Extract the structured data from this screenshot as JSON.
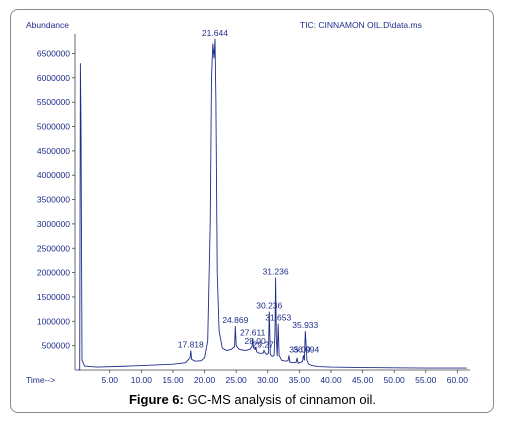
{
  "caption": {
    "prefix": "Figure 6:",
    "text": " GC-MS analysis of cinnamon oil."
  },
  "chart_data": {
    "type": "line",
    "title": "TIC: CINNAMON OIL.D\\data.ms",
    "ylabel": "Abundance",
    "xlabel": "Time-->",
    "xlim": [
      -0.5,
      62.0
    ],
    "ylim": [
      0,
      6900000
    ],
    "x_ticks": [
      5.0,
      10.0,
      15.0,
      20.0,
      25.0,
      30.0,
      35.0,
      40.0,
      45.0,
      50.0,
      55.0,
      60.0
    ],
    "x_tick_labels": [
      "5.00",
      "10.00",
      "15.00",
      "20.00",
      "25.00",
      "30.00",
      "35.00",
      "40.00",
      "45.00",
      "50.00",
      "55.00",
      "60.00"
    ],
    "y_ticks": [
      500000,
      1000000,
      1500000,
      2000000,
      2500000,
      3000000,
      3500000,
      4000000,
      4500000,
      5000000,
      5500000,
      6000000,
      6500000
    ],
    "y_tick_labels": [
      "500000",
      "1000000",
      "1500000",
      "2000000",
      "2500000",
      "3000000",
      "3500000",
      "4000000",
      "4500000",
      "5000000",
      "5500000",
      "6000000",
      "6500000"
    ],
    "color": "#1f2d8a",
    "series": [
      {
        "x": [
          0.0,
          0.25,
          0.35,
          0.45,
          0.6,
          1.0,
          3.0,
          8.0,
          12.0,
          15.0,
          17.0,
          17.7,
          17.818,
          17.95,
          18.5,
          19.5,
          20.0,
          20.5,
          20.9,
          21.1,
          21.3,
          21.5,
          21.644,
          21.8,
          22.0,
          22.3,
          22.8,
          23.5,
          24.2,
          24.75,
          24.869,
          25.0,
          25.5,
          26.5,
          27.2,
          27.5,
          27.611,
          27.75,
          28.0,
          28.1,
          28.25,
          28.4,
          28.8,
          29.3,
          29.4,
          29.55,
          29.8,
          30.1,
          30.236,
          30.4,
          30.7,
          31.0,
          31.15,
          31.236,
          31.35,
          31.5,
          31.653,
          31.8,
          32.2,
          32.8,
          33.2,
          33.35,
          33.5,
          34.0,
          34.5,
          34.65,
          34.8,
          35.2,
          35.5,
          35.65,
          35.8,
          35.933,
          36.05,
          36.2,
          36.5,
          37.0,
          38.0,
          40.0,
          45.0,
          50.0,
          55.0,
          61.5
        ],
        "y": [
          0,
          0,
          6300000,
          5000000,
          200000,
          80000,
          60000,
          80000,
          100000,
          120000,
          150000,
          250000,
          400000,
          220000,
          180000,
          190000,
          250000,
          600000,
          3000000,
          6000000,
          6700000,
          6400000,
          6800000,
          5500000,
          2000000,
          800000,
          450000,
          400000,
          420000,
          480000,
          900000,
          500000,
          420000,
          400000,
          430000,
          480000,
          650000,
          460000,
          420000,
          470000,
          380000,
          360000,
          340000,
          350000,
          400000,
          360000,
          320000,
          340000,
          1200000,
          320000,
          280000,
          300000,
          800000,
          1900000,
          700000,
          280000,
          950000,
          300000,
          200000,
          180000,
          190000,
          300000,
          160000,
          150000,
          160000,
          250000,
          140000,
          160000,
          170000,
          300000,
          200000,
          800000,
          550000,
          200000,
          120000,
          90000,
          70000,
          60000,
          50000,
          45000,
          40000,
          40000
        ]
      }
    ],
    "peak_labels": [
      {
        "text": "21.644",
        "x": 21.644,
        "y": 6800000
      },
      {
        "text": "17.818",
        "x": 17.818,
        "y": 400000
      },
      {
        "text": "24.869",
        "x": 24.869,
        "y": 900000
      },
      {
        "text": "27.611",
        "x": 27.611,
        "y": 650000
      },
      {
        "text": "28.00",
        "x": 28.0,
        "y": 470000
      },
      {
        "text": "29.27",
        "x": 29.27,
        "y": 400000
      },
      {
        "text": "30.236",
        "x": 30.236,
        "y": 1200000
      },
      {
        "text": "31.236",
        "x": 31.236,
        "y": 1900000
      },
      {
        "text": "31.653",
        "x": 31.653,
        "y": 950000
      },
      {
        "text": "35.933",
        "x": 35.933,
        "y": 800000
      },
      {
        "text": "35.09",
        "x": 35.09,
        "y": 300000
      },
      {
        "text": "36.094",
        "x": 36.094,
        "y": 300000
      }
    ]
  }
}
